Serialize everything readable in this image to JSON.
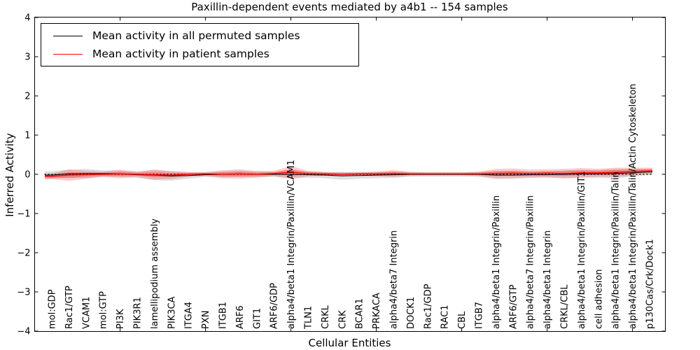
{
  "chart_data": {
    "type": "line",
    "title": "Paxillin-dependent events mediated by a4b1 -- 154 samples",
    "xlabel": "Cellular Entities",
    "ylabel": "Inferred Activity",
    "ylim": [
      -4,
      4
    ],
    "yticks": [
      {
        "v": 4,
        "label": "4"
      },
      {
        "v": 3,
        "label": "3"
      },
      {
        "v": 2,
        "label": "2"
      },
      {
        "v": 1,
        "label": "1"
      },
      {
        "v": 0,
        "label": "0"
      },
      {
        "v": -1,
        "label": "−1"
      },
      {
        "v": -2,
        "label": "−2"
      },
      {
        "v": -3,
        "label": "−3"
      },
      {
        "v": -4,
        "label": "−4"
      }
    ],
    "grid": false,
    "legend_position": "upper-left",
    "zero_line": true,
    "categories": [
      "mol:GDP",
      "Rac1/GTP",
      "VCAM1",
      "mol:GTP",
      "PI3K",
      "PIK3R1",
      "lamellipodium assembly",
      "PIK3CA",
      "ITGA4",
      "PXN",
      "ITGB1",
      "ARF6",
      "GIT1",
      "ARF6/GDP",
      "alpha4/beta1 Integrin/Paxillin/VCAM1",
      "TLN1",
      "CRKL",
      "CRK",
      "BCAR1",
      "PRKACA",
      "alpha4/beta7 Integrin",
      "DOCK1",
      "Rac1/GDP",
      "RAC1",
      "CBL",
      "ITGB7",
      "alpha4/beta1 Integrin/Paxillin",
      "ARF6/GTP",
      "alpha4/beta7 Integrin/Paxillin",
      "alpha4/beta1 Integrin",
      "CRKL/CBL",
      "alpha4/beta1 Integrin/Paxillin/GIT1",
      "cell adhesion",
      "alpha4/beta1 Integrin/Paxillin/Talin",
      "alpha4/beta1 Integrin/Paxillin/Talin/Actin Cytoskeleton",
      "p130Cas/Crk/Dock1"
    ],
    "series": [
      {
        "name": "Mean activity in all permuted samples",
        "color": "#000000",
        "band_color": "#8c8c8c",
        "values": [
          -0.02,
          0.01,
          0.02,
          0.02,
          0.01,
          -0.01,
          -0.02,
          -0.04,
          -0.03,
          -0.01,
          0.0,
          0.01,
          0.0,
          0.0,
          0.0,
          -0.01,
          -0.02,
          -0.04,
          -0.03,
          -0.02,
          -0.01,
          0.0,
          0.0,
          0.0,
          0.0,
          0.0,
          -0.02,
          -0.02,
          -0.01,
          -0.01,
          0.0,
          0.01,
          0.01,
          0.02,
          0.04,
          0.06
        ],
        "band_halfwidth": [
          0.1,
          0.1,
          0.12,
          0.08,
          0.08,
          0.08,
          0.13,
          0.12,
          0.08,
          0.06,
          0.08,
          0.08,
          0.08,
          0.06,
          0.1,
          0.08,
          0.08,
          0.1,
          0.08,
          0.08,
          0.08,
          0.06,
          0.06,
          0.06,
          0.06,
          0.06,
          0.1,
          0.1,
          0.08,
          0.08,
          0.1,
          0.1,
          0.1,
          0.12,
          0.1,
          0.08
        ]
      },
      {
        "name": "Mean activity in patient samples",
        "color": "#ff0000",
        "band_color": "#ff0000",
        "values": [
          -0.05,
          -0.02,
          -0.01,
          0.0,
          0.01,
          0.0,
          -0.01,
          -0.02,
          0.0,
          0.01,
          0.0,
          0.01,
          0.0,
          0.02,
          0.05,
          0.02,
          0.01,
          0.0,
          0.01,
          0.01,
          0.02,
          0.01,
          0.01,
          0.01,
          0.01,
          0.01,
          0.02,
          0.03,
          0.02,
          0.03,
          0.02,
          0.04,
          0.04,
          0.05,
          0.07,
          0.09
        ],
        "band_halfwidth": [
          0.07,
          0.15,
          0.1,
          0.07,
          0.11,
          0.07,
          0.13,
          0.1,
          0.06,
          0.05,
          0.1,
          0.12,
          0.08,
          0.07,
          0.16,
          0.07,
          0.05,
          0.05,
          0.05,
          0.06,
          0.09,
          0.05,
          0.04,
          0.04,
          0.04,
          0.06,
          0.12,
          0.12,
          0.1,
          0.1,
          0.12,
          0.12,
          0.1,
          0.12,
          0.1,
          0.08
        ]
      }
    ]
  }
}
